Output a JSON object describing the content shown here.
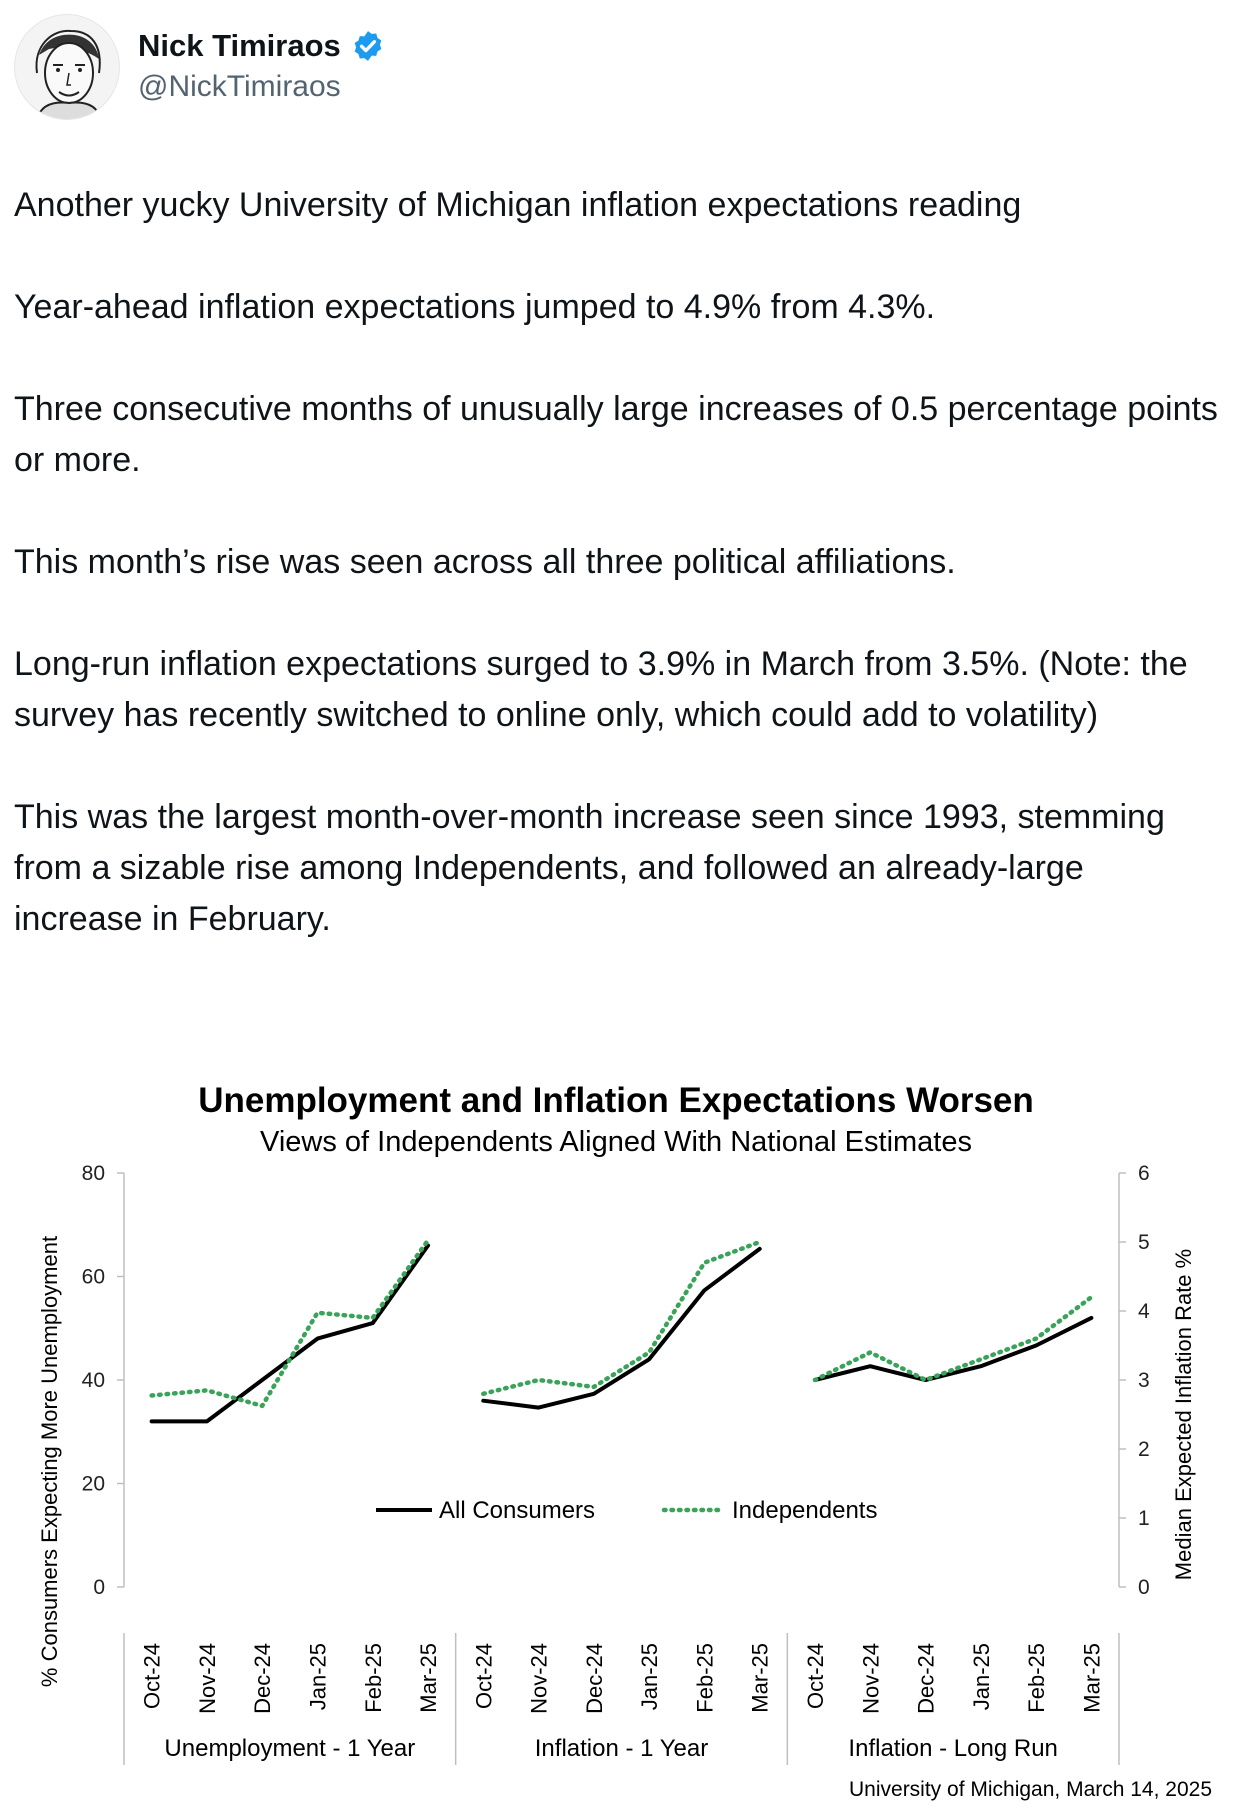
{
  "tweet": {
    "author_name": "Nick Timiraos",
    "author_handle": "@NickTimiraos",
    "verified_icon": "verified-badge-icon",
    "paragraphs": [
      "Another yucky University of Michigan inflation expectations reading",
      "Year-ahead inflation expectations jumped to 4.9% from 4.3%.",
      "Three consecutive months of unusually large increases of 0.5 percentage points or more.",
      "This month’s rise was seen across all three political affiliations.",
      "Long-run inflation expectations surged to 3.9% in March from 3.5%. (Note: the survey has recently switched to online only, which could add to volatility)",
      "This was the largest month-over-month increase seen since 1993, stemming from a sizable rise among Independents, and followed an already-large increase in February."
    ]
  },
  "colors": {
    "all_consumers": "#000000",
    "independents": "#3aa35a",
    "verified_badge": "#1d9bf0"
  },
  "chart_data": {
    "type": "line",
    "title": "Unemployment and Inflation Expectations Worsen",
    "subtitle": "Views of Independents Aligned With National Estimates",
    "ylabel_left": "% Consumers Expecting More Unemployment",
    "ylabel_right": "Median Expected Inflation Rate %",
    "ylim_left": [
      0,
      80
    ],
    "yticks_left": [
      "0",
      "20",
      "40",
      "60",
      "80"
    ],
    "ylim_right": [
      0,
      6
    ],
    "yticks_right": [
      "0",
      "1",
      "2",
      "3",
      "4",
      "5",
      "6"
    ],
    "categories": [
      "Oct-24",
      "Nov-24",
      "Dec-24",
      "Jan-25",
      "Feb-25",
      "Mar-25"
    ],
    "legend": {
      "placement": "center",
      "entries": [
        "All Consumers",
        "Independents"
      ]
    },
    "source": "University of Michigan, March 14, 2025",
    "panels": [
      {
        "label": "Unemployment - 1 Year",
        "axis": "left",
        "series": [
          {
            "name": "All Consumers",
            "style": "solid",
            "values": [
              32,
              32,
              40,
              48,
              51,
              66
            ]
          },
          {
            "name": "Independents",
            "style": "dotted",
            "values": [
              37,
              38,
              35,
              53,
              52,
              67
            ]
          }
        ]
      },
      {
        "label": "Inflation - 1 Year",
        "axis": "right",
        "series": [
          {
            "name": "All Consumers",
            "style": "solid",
            "values": [
              2.7,
              2.6,
              2.8,
              3.3,
              4.3,
              4.9
            ]
          },
          {
            "name": "Independents",
            "style": "dotted",
            "values": [
              2.8,
              3.0,
              2.9,
              3.4,
              4.7,
              5.0
            ]
          }
        ]
      },
      {
        "label": "Inflation - Long Run",
        "axis": "right",
        "series": [
          {
            "name": "All Consumers",
            "style": "solid",
            "values": [
              3.0,
              3.2,
              3.0,
              3.2,
              3.5,
              3.9
            ]
          },
          {
            "name": "Independents",
            "style": "dotted",
            "values": [
              3.0,
              3.4,
              3.0,
              3.3,
              3.6,
              4.2
            ]
          }
        ]
      }
    ]
  }
}
